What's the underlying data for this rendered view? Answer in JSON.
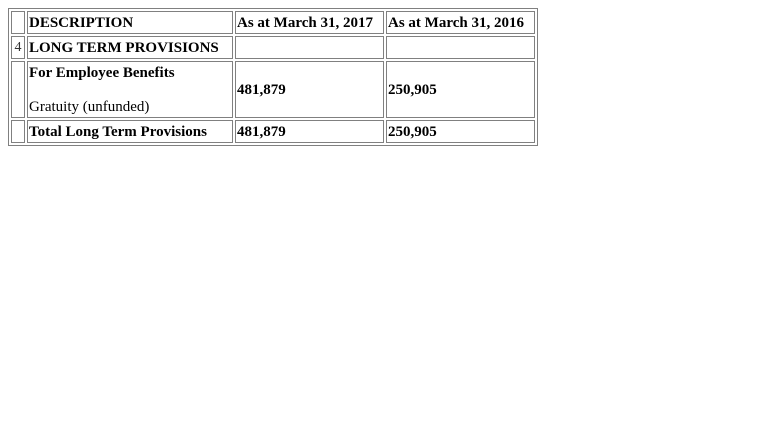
{
  "table": {
    "header": {
      "description": "DESCRIPTION",
      "col_2017": "As at March 31, 2017",
      "col_2016": "As at March 31, 2016"
    },
    "section": {
      "number": "4",
      "title": "LONG TERM PROVISIONS"
    },
    "detail": {
      "heading": "For Employee Benefits",
      "item": "Gratuity (unfunded)",
      "value_2017": "481,879",
      "value_2016": "250,905"
    },
    "total": {
      "label": "Total Long Term Provisions",
      "value_2017": "481,879",
      "value_2016": "250,905"
    }
  }
}
